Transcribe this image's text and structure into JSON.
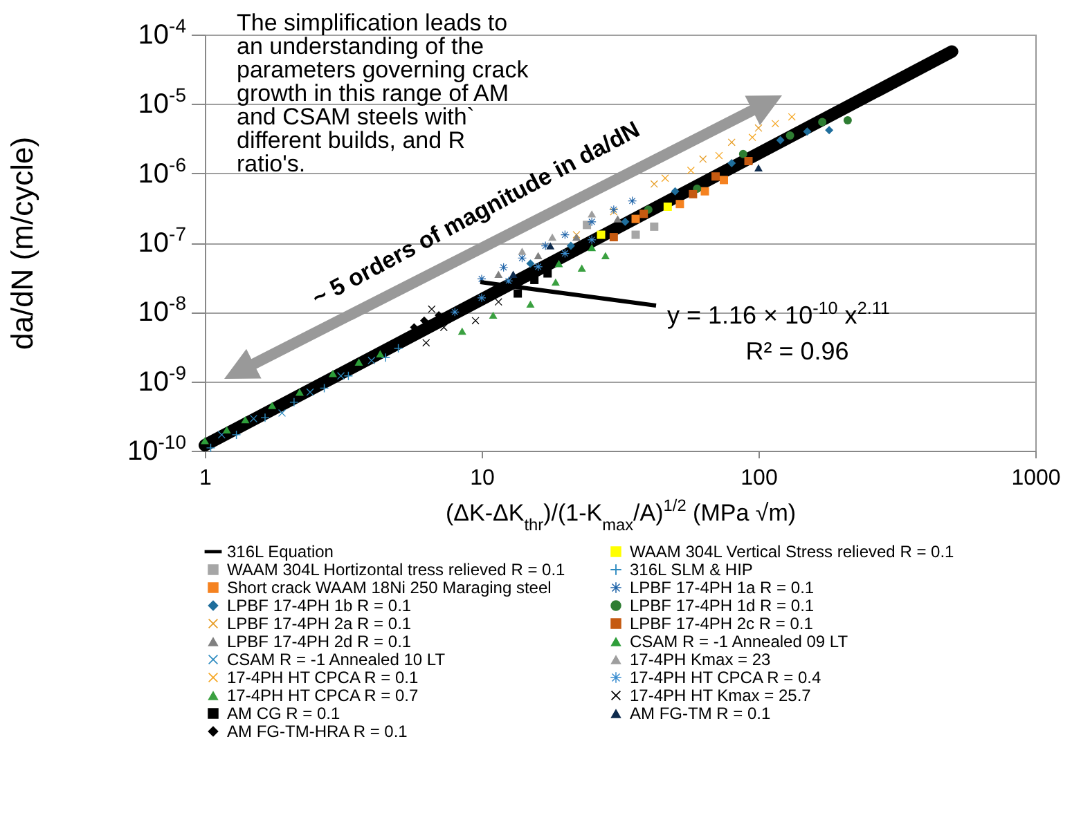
{
  "chart_data": {
    "type": "scatter",
    "xlabel": "(ΔK-ΔK$_{thr}$)/(1-K$_{max}$/A)$^{1/2}$   (MPa √m)",
    "ylabel": "da/dN (m/cycle)",
    "annotations": [
      "The simplification leads to an understanding of the parameters governing crack growth in this range of AM and CSAM steels with` different builds, and R ratio's.",
      "~ 5 orders of magnitude in da/dN",
      "y = 1.16 × 10$^{-10}$ x$^{2.11}$",
      "R² = 0.96"
    ],
    "log": "xy",
    "grid": "y",
    "legend": "bottom",
    "xlim": [
      1,
      1000
    ],
    "xticks": [
      1,
      10,
      100,
      1000
    ],
    "ylim": [
      1e-10,
      0.0001
    ],
    "yticks": [
      {
        "value": 1e-10,
        "label": "10$^{-10}$"
      },
      {
        "value": 1e-09,
        "label": "10$^{-9}$"
      },
      {
        "value": 1e-08,
        "label": "10$^{-8}$"
      },
      {
        "value": 1e-07,
        "label": "10$^{-7}$"
      },
      {
        "value": 1e-06,
        "label": "10$^{-6}$"
      },
      {
        "value": 1e-05,
        "label": "10$^{-5}$"
      },
      {
        "value": 0.0001,
        "label": "10$^{-4}$"
      }
    ],
    "series": [
      {
        "name": "316L Equation",
        "type": "line",
        "marker": "none",
        "color": "#000000",
        "x": [
          1,
          500
        ],
        "values": [
          1.2e-10,
          5.7e-05
        ]
      },
      {
        "name": "WAAM 304L Hortizontal tress relieved R = 0.1",
        "marker": "square",
        "color": "#a6a6a6",
        "x": [
          24,
          36,
          42
        ],
        "values": [
          1.8e-07,
          1.3e-07,
          1.7e-07
        ]
      },
      {
        "name": "Short crack WAAM 18Ni 250 Maraging steel",
        "marker": "square",
        "color": "#f58220",
        "x": [
          36,
          52,
          64,
          75
        ],
        "values": [
          2.2e-07,
          3.6e-07,
          5.5e-07,
          8e-07
        ]
      },
      {
        "name": "LPBF 17-4PH 1b R = 0.1",
        "marker": "diamond",
        "color": "#1f6e9c",
        "x": [
          15,
          21,
          33,
          50,
          80,
          120,
          150,
          180
        ],
        "values": [
          5e-08,
          9e-08,
          2e-07,
          5.5e-07,
          1.4e-06,
          3e-06,
          4e-06,
          4.2e-06
        ]
      },
      {
        "name": "LPBF 17-4PH 2a R = 0.1",
        "marker": "cross",
        "color": "#e69c24",
        "x": [
          22,
          30,
          42,
          63,
          80,
          100
        ],
        "values": [
          1.3e-07,
          2.8e-07,
          7e-07,
          1.6e-06,
          2.8e-06,
          4.5e-06
        ]
      },
      {
        "name": "LPBF 17-4PH 2d R = 0.1",
        "marker": "triangle",
        "color": "#808080",
        "x": [
          11.5,
          16,
          22,
          31
        ],
        "values": [
          3.5e-08,
          6.5e-08,
          1.2e-07,
          2.2e-07
        ]
      },
      {
        "name": "CSAM R = -1 Annealed 10 LT",
        "marker": "cross",
        "color": "#2e8bc0",
        "x": [
          1.15,
          1.5,
          1.9,
          2.4,
          3.1,
          4
        ],
        "values": [
          1.7e-10,
          2.9e-10,
          3.5e-10,
          7e-10,
          1.2e-09,
          2e-09
        ]
      },
      {
        "name": "17-4PH HT CPCA R = 0.1",
        "marker": "cross",
        "color": "#f5a623",
        "x": [
          46,
          57,
          72,
          95,
          115,
          132
        ],
        "values": [
          8.5e-07,
          1.1e-06,
          1.8e-06,
          3.3e-06,
          5.2e-06,
          6.5e-06
        ]
      },
      {
        "name": "17-4PH HT CPCA R = 0.7",
        "marker": "triangle",
        "color": "#3aa040",
        "x": [
          8.5,
          11,
          15,
          18.5,
          23,
          28
        ],
        "values": [
          5.3e-09,
          9e-09,
          1.3e-08,
          2.7e-08,
          4.3e-08,
          6.5e-08
        ]
      },
      {
        "name": "AM CG R = 0.1",
        "marker": "square",
        "color": "#000000",
        "x": [
          13.5,
          15.5,
          17.3
        ],
        "values": [
          1.85e-08,
          2.9e-08,
          3.6e-08
        ]
      },
      {
        "name": "AM FG-TM-HRA R = 0.1",
        "marker": "diamond",
        "color": "#000000",
        "x": [
          5.7,
          6.2,
          7
        ],
        "values": [
          6e-09,
          7.5e-09,
          9e-09
        ]
      },
      {
        "name": "WAAM 304L Vertical Stress relieved R = 0.1",
        "marker": "square",
        "color": "#ffff00",
        "x": [
          27,
          47
        ],
        "values": [
          1.3e-07,
          3.3e-07
        ]
      },
      {
        "name": "316L SLM & HIP",
        "marker": "plus",
        "color": "#2e8bc0",
        "x": [
          1.05,
          1.3,
          1.65,
          2.1,
          2.7,
          3.3,
          4.5,
          5
        ],
        "values": [
          1.1e-10,
          1.7e-10,
          3e-10,
          5e-10,
          8e-10,
          1.2e-09,
          2.2e-09,
          3e-09
        ]
      },
      {
        "name": "LPBF 17-4PH 1a R = 0.1",
        "marker": "star",
        "color": "#2266aa",
        "x": [
          10,
          12,
          14,
          17,
          20,
          25,
          30,
          35
        ],
        "values": [
          3e-08,
          4.4e-08,
          6e-08,
          9e-08,
          1.3e-07,
          2e-07,
          3e-07,
          4e-07
        ]
      },
      {
        "name": "LPBF 17-4PH 1d R = 0.1",
        "marker": "circle",
        "color": "#2e7d32",
        "x": [
          40,
          60,
          88,
          130,
          170,
          210
        ],
        "values": [
          3e-07,
          6e-07,
          1.9e-06,
          3.5e-06,
          5.5e-06,
          5.8e-06
        ]
      },
      {
        "name": "LPBF 17-4PH 2c R = 0.1",
        "marker": "square",
        "color": "#c55a11",
        "x": [
          30,
          38.5,
          58,
          70,
          92
        ],
        "values": [
          1.2e-07,
          2.6e-07,
          5e-07,
          9e-07,
          1.5e-06
        ]
      },
      {
        "name": "CSAM R = -1 Annealed 09 LT",
        "marker": "triangle",
        "color": "#2e9e3a",
        "x": [
          1,
          1.2,
          1.4,
          1.75,
          2.2,
          2.9,
          3.6,
          4.3,
          19,
          25
        ],
        "values": [
          1.4e-10,
          2e-10,
          2.8e-10,
          4.5e-10,
          7e-10,
          1.3e-09,
          1.9e-09,
          2.5e-09,
          5e-08,
          8.5e-08
        ]
      },
      {
        "name": "17-4PH Kmax = 23",
        "marker": "triangle",
        "color": "#9e9e9e",
        "x": [
          14,
          18,
          25
        ],
        "values": [
          7.5e-08,
          1.2e-07,
          2.6e-07
        ]
      },
      {
        "name": "17-4PH HT CPCA  R = 0.4",
        "marker": "star",
        "color": "#3d8fd1",
        "x": [
          8,
          10,
          12.5,
          16,
          20,
          25
        ],
        "values": [
          1e-08,
          1.6e-08,
          2.8e-08,
          4.5e-08,
          7e-08,
          1.1e-07
        ]
      },
      {
        "name": "17-4PH HT Kmax = 25.7",
        "marker": "cross",
        "color": "#000000",
        "x": [
          6.3,
          6.6,
          7.3,
          9.5,
          11.5
        ],
        "values": [
          3.6e-09,
          1.1e-08,
          6e-09,
          7.5e-09,
          1.4e-08
        ]
      },
      {
        "name": "AM FG-TM R = 0.1",
        "marker": "triangle",
        "color": "#0d2a4d",
        "x": [
          13,
          17.7,
          100
        ],
        "values": [
          3.5e-08,
          9e-08,
          1.2e-06
        ]
      }
    ]
  }
}
